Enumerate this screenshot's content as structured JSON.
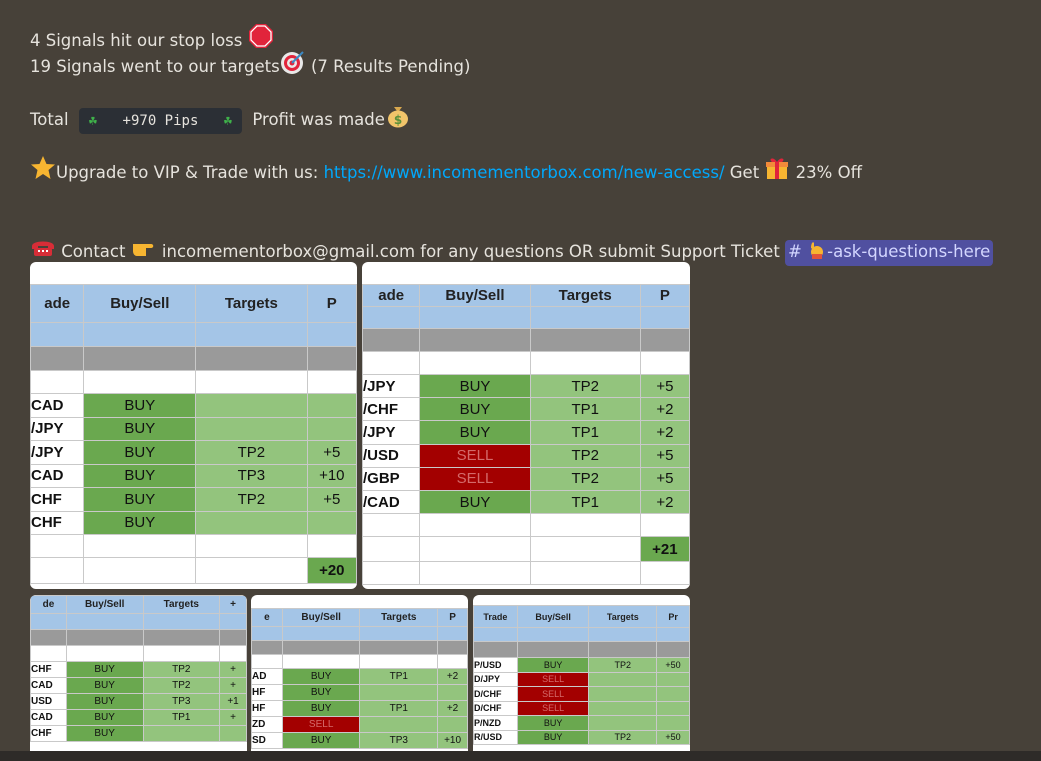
{
  "message": {
    "line1": "4 Signals hit our stop loss ",
    "line2": "19 Signals went to our targets",
    "line2_suffix": " (7 Results Pending)",
    "total_label": "Total",
    "pips_code": "+970 Pips",
    "clover": "☘",
    "profit_text": "Profit was made",
    "upgrade_text": "Upgrade to VIP & Trade with us: ",
    "upgrade_link": "https://www.incomementorbox.com/new-access/",
    "get_text": " Get ",
    "off_text": " 23% Off",
    "contact_text": " Contact ",
    "contact_rest": " incomementorbox@gmail.com for any questions OR submit Support Ticket ",
    "channel_mention": "-ask-questions-here",
    "channel_hash": "#"
  },
  "icons": {
    "stop": "stop-sign-icon",
    "target": "direct-hit-icon",
    "money": "money-bag-icon",
    "star": "star-icon",
    "gift": "gift-icon",
    "phone": "telephone-icon",
    "point": "pointing-hand-icon",
    "raise": "raising-hand-icon"
  },
  "colors": {
    "background": "#474139",
    "link": "#00a8fc",
    "mention_bg": "#5050a0",
    "header_blue": "#a4c5e7",
    "buy_green": "#6aa84f",
    "row_green": "#93c47d",
    "sell_red": "#a30000"
  },
  "sheets": [
    {
      "headers": [
        "ade",
        "Buy/Sell",
        "Targets",
        "P"
      ],
      "rows": [
        [
          "CAD",
          "BUY",
          "",
          ""
        ],
        [
          "/JPY",
          "BUY",
          "",
          ""
        ],
        [
          "/JPY",
          "BUY",
          "TP2",
          "+5"
        ],
        [
          "CAD",
          "BUY",
          "TP3",
          "+10"
        ],
        [
          "CHF",
          "BUY",
          "TP2",
          "+5"
        ],
        [
          "CHF",
          "BUY",
          "",
          ""
        ]
      ],
      "total": "+20"
    },
    {
      "headers": [
        "ade",
        "Buy/Sell",
        "Targets",
        "P"
      ],
      "rows": [
        [
          "/JPY",
          "BUY",
          "TP2",
          "+5"
        ],
        [
          "/CHF",
          "BUY",
          "TP1",
          "+2"
        ],
        [
          "/JPY",
          "BUY",
          "TP1",
          "+2"
        ],
        [
          "/USD",
          "SELL",
          "TP2",
          "+5"
        ],
        [
          "/GBP",
          "SELL",
          "TP2",
          "+5"
        ],
        [
          "/CAD",
          "BUY",
          "TP1",
          "+2"
        ]
      ],
      "total": "+21"
    },
    {
      "headers": [
        "de",
        "Buy/Sell",
        "Targets",
        "+"
      ],
      "rows": [
        [
          "CHF",
          "BUY",
          "TP2",
          "+"
        ],
        [
          "CAD",
          "BUY",
          "TP2",
          "+"
        ],
        [
          "USD",
          "BUY",
          "TP3",
          "+1"
        ],
        [
          "CAD",
          "BUY",
          "TP1",
          "+"
        ],
        [
          "CHF",
          "BUY",
          "",
          ""
        ]
      ]
    },
    {
      "headers": [
        "e",
        "Buy/Sell",
        "Targets",
        "P"
      ],
      "rows": [
        [
          "AD",
          "BUY",
          "TP1",
          "+2"
        ],
        [
          "HF",
          "BUY",
          "",
          ""
        ],
        [
          "HF",
          "BUY",
          "TP1",
          "+2"
        ],
        [
          "ZD",
          "SELL",
          "",
          ""
        ],
        [
          "SD",
          "BUY",
          "TP3",
          "+10"
        ]
      ]
    },
    {
      "headers": [
        "Trade",
        "Buy/Sell",
        "Targets",
        "Pr"
      ],
      "rows": [
        [
          "P/USD",
          "BUY",
          "TP2",
          "+50"
        ],
        [
          "D/JPY",
          "SELL",
          "",
          ""
        ],
        [
          "D/CHF",
          "SELL",
          "",
          ""
        ],
        [
          "D/CHF",
          "SELL",
          "",
          ""
        ],
        [
          "P/NZD",
          "BUY",
          "",
          ""
        ],
        [
          "R/USD",
          "BUY",
          "TP2",
          "+50"
        ]
      ]
    }
  ]
}
